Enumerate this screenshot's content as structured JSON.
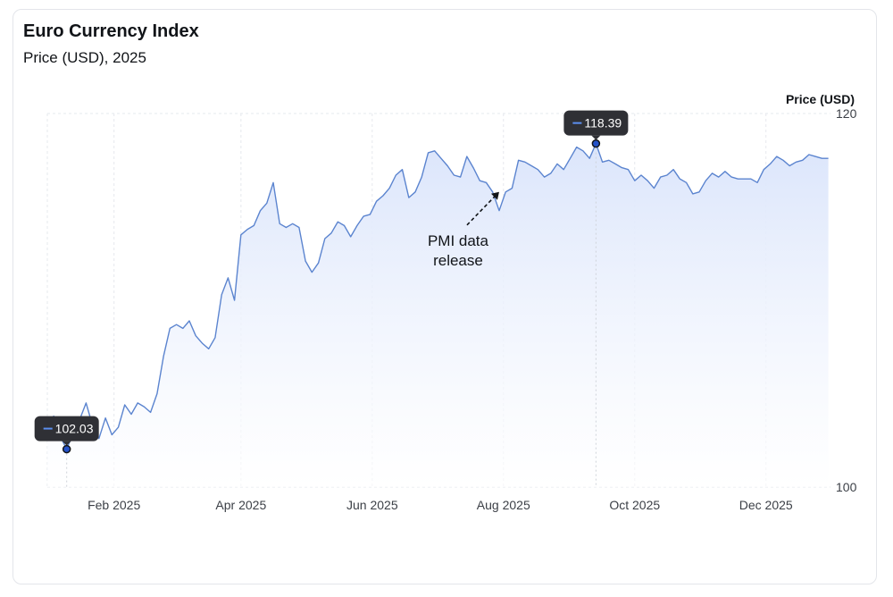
{
  "header": {
    "title": "Euro Currency Index",
    "subtitle": "Price (USD), 2025"
  },
  "colors": {
    "line": "#5b84cf",
    "area_top": "#dbe5fb",
    "grid": "#e6e8ed",
    "tooltip_bg": "#2f3035",
    "marker_fill": "#2452c9"
  },
  "chart_data": {
    "type": "area",
    "title": "Euro Currency Index",
    "subtitle": "Price (USD), 2025",
    "ylabel": "Price (USD)",
    "ylim": [
      100,
      120
    ],
    "y_ticks": [
      100,
      120
    ],
    "x_ticks": [
      "Feb 2025",
      "Apr 2025",
      "Jun 2025",
      "Aug 2025",
      "Oct 2025",
      "Dec 2025"
    ],
    "x_tick_dates": [
      "2025-02-01",
      "2025-04-01",
      "2025-06-01",
      "2025-08-01",
      "2025-10-01",
      "2025-12-01"
    ],
    "xlim": [
      "2025-01-01",
      "2025-12-31"
    ],
    "grid": true,
    "series": [
      {
        "x": [
          "2025-01-01",
          "2025-01-04",
          "2025-01-07",
          "2025-01-10",
          "2025-01-13",
          "2025-01-16",
          "2025-01-19",
          "2025-01-22",
          "2025-01-25",
          "2025-01-28",
          "2025-01-31",
          "2025-02-03",
          "2025-02-06",
          "2025-02-09",
          "2025-02-12",
          "2025-02-15",
          "2025-02-18",
          "2025-02-21",
          "2025-02-24",
          "2025-02-27",
          "2025-03-02",
          "2025-03-05",
          "2025-03-08",
          "2025-03-11",
          "2025-03-14",
          "2025-03-17",
          "2025-03-20",
          "2025-03-23",
          "2025-03-26",
          "2025-03-29",
          "2025-04-01",
          "2025-04-04",
          "2025-04-07",
          "2025-04-10",
          "2025-04-13",
          "2025-04-16",
          "2025-04-19",
          "2025-04-22",
          "2025-04-25",
          "2025-04-28",
          "2025-05-01",
          "2025-05-04",
          "2025-05-07",
          "2025-05-10",
          "2025-05-13",
          "2025-05-16",
          "2025-05-19",
          "2025-05-22",
          "2025-05-25",
          "2025-05-28",
          "2025-05-31",
          "2025-06-03",
          "2025-06-06",
          "2025-06-09",
          "2025-06-12",
          "2025-06-15",
          "2025-06-18",
          "2025-06-21",
          "2025-06-24",
          "2025-06-27",
          "2025-06-30",
          "2025-07-03",
          "2025-07-06",
          "2025-07-09",
          "2025-07-12",
          "2025-07-15",
          "2025-07-18",
          "2025-07-21",
          "2025-07-24",
          "2025-07-27",
          "2025-07-30",
          "2025-08-02",
          "2025-08-05",
          "2025-08-08",
          "2025-08-11",
          "2025-08-14",
          "2025-08-17",
          "2025-08-20",
          "2025-08-23",
          "2025-08-26",
          "2025-08-29",
          "2025-09-01",
          "2025-09-04",
          "2025-09-07",
          "2025-09-10",
          "2025-09-13",
          "2025-09-16",
          "2025-09-19",
          "2025-09-22",
          "2025-09-25",
          "2025-09-28",
          "2025-10-01",
          "2025-10-04",
          "2025-10-07",
          "2025-10-10",
          "2025-10-13",
          "2025-10-16",
          "2025-10-19",
          "2025-10-22",
          "2025-10-25",
          "2025-10-28",
          "2025-10-31",
          "2025-11-03",
          "2025-11-06",
          "2025-11-09",
          "2025-11-12",
          "2025-11-15",
          "2025-11-18",
          "2025-11-21",
          "2025-11-24",
          "2025-11-27",
          "2025-11-30",
          "2025-12-03",
          "2025-12-06",
          "2025-12-09",
          "2025-12-12",
          "2025-12-15",
          "2025-12-18",
          "2025-12-21",
          "2025-12-24",
          "2025-12-27",
          "2025-12-30"
        ],
        "values": [
          103.5,
          103.8,
          102.7,
          102.03,
          102.9,
          103.6,
          104.5,
          103.3,
          102.6,
          103.7,
          102.8,
          103.2,
          104.4,
          103.9,
          104.5,
          104.3,
          104.0,
          105.0,
          107.0,
          108.5,
          108.7,
          108.5,
          108.9,
          108.1,
          107.7,
          107.4,
          108.0,
          110.3,
          111.2,
          110.0,
          113.5,
          113.8,
          114.0,
          114.8,
          115.2,
          116.3,
          114.1,
          113.9,
          114.1,
          113.9,
          112.1,
          111.5,
          112.0,
          113.3,
          113.6,
          114.2,
          114.0,
          113.4,
          114.0,
          114.5,
          114.6,
          115.3,
          115.6,
          116.0,
          116.7,
          117.0,
          115.5,
          115.8,
          116.6,
          117.9,
          118.0,
          117.6,
          117.2,
          116.7,
          116.6,
          117.7,
          117.1,
          116.4,
          116.3,
          115.8,
          114.8,
          115.8,
          116.0,
          117.5,
          117.4,
          117.2,
          117.0,
          116.6,
          116.8,
          117.3,
          117.0,
          117.6,
          118.2,
          118.0,
          117.6,
          118.39,
          117.4,
          117.5,
          117.3,
          117.1,
          117.0,
          116.4,
          116.7,
          116.4,
          116.0,
          116.6,
          116.7,
          117.0,
          116.5,
          116.3,
          115.7,
          115.8,
          116.4,
          116.8,
          116.6,
          116.9,
          116.6,
          116.5,
          116.5,
          116.5,
          116.3,
          117.0,
          117.3,
          117.7,
          117.5,
          117.2,
          117.4,
          117.5,
          117.8,
          117.7,
          117.6,
          117.6
        ]
      }
    ],
    "tooltips": [
      {
        "date": "2025-01-10",
        "value": 102.03,
        "label": "102.03"
      },
      {
        "date": "2025-09-13",
        "value": 118.39,
        "label": "118.39"
      }
    ],
    "annotations": [
      {
        "lines": [
          "PMI data",
          "release"
        ],
        "date": "2025-07-30",
        "value": 115.8
      }
    ]
  }
}
